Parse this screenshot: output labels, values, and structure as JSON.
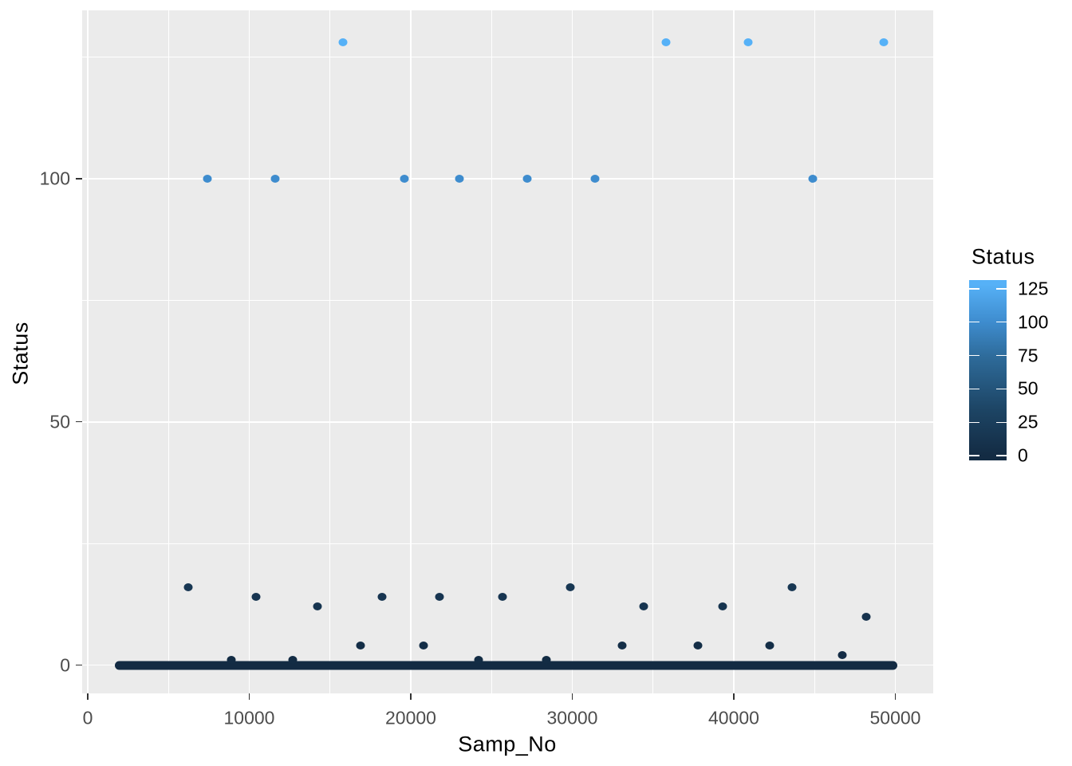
{
  "figure": {
    "background": "#FFFFFF",
    "panel_background": "#EBEBEB",
    "grid_color": "#FFFFFF",
    "tick_mark_color": "#333333",
    "tick_label_color": "#4D4D4D",
    "title_color": "#000000"
  },
  "chart_data": {
    "type": "scatter",
    "title": "",
    "xlabel": "Samp_No",
    "ylabel": "Status",
    "xlim": [
      -350,
      52400
    ],
    "ylim": [
      -6,
      134.6
    ],
    "x_major_ticks": [
      0,
      10000,
      20000,
      30000,
      40000,
      50000
    ],
    "x_minor_ticks": [
      5000,
      15000,
      25000,
      35000,
      45000
    ],
    "y_major_ticks": [
      0,
      50,
      100
    ],
    "y_minor_ticks": [
      25,
      75,
      125
    ],
    "grid": true,
    "legend": {
      "title": "Status",
      "position": "right",
      "breaks": [
        125,
        100,
        75,
        50,
        25,
        0
      ],
      "domain": [
        0,
        128
      ],
      "gradient_low": "#132B43",
      "gradient_high": "#56B1F7",
      "gradient_stops": [
        {
          "value": 0,
          "color": "#132B43"
        },
        {
          "value": 35,
          "color": "#1D4565"
        },
        {
          "value": 74,
          "color": "#2E6B9A"
        },
        {
          "value": 100,
          "color": "#3E8CCE"
        },
        {
          "value": 128,
          "color": "#56B1F7"
        }
      ]
    },
    "points": [
      {
        "samp_no": 7400,
        "status": 100
      },
      {
        "samp_no": 11600,
        "status": 100
      },
      {
        "samp_no": 19600,
        "status": 100
      },
      {
        "samp_no": 23000,
        "status": 100
      },
      {
        "samp_no": 27200,
        "status": 100
      },
      {
        "samp_no": 31400,
        "status": 100
      },
      {
        "samp_no": 44900,
        "status": 100
      },
      {
        "samp_no": 15800,
        "status": 128
      },
      {
        "samp_no": 35800,
        "status": 128
      },
      {
        "samp_no": 40900,
        "status": 128
      },
      {
        "samp_no": 49300,
        "status": 128
      },
      {
        "samp_no": 6200,
        "status": 16
      },
      {
        "samp_no": 29900,
        "status": 16
      },
      {
        "samp_no": 43600,
        "status": 16
      },
      {
        "samp_no": 10400,
        "status": 14
      },
      {
        "samp_no": 18200,
        "status": 14
      },
      {
        "samp_no": 21800,
        "status": 14
      },
      {
        "samp_no": 25700,
        "status": 14
      },
      {
        "samp_no": 14200,
        "status": 12
      },
      {
        "samp_no": 34400,
        "status": 12
      },
      {
        "samp_no": 39300,
        "status": 12
      },
      {
        "samp_no": 48200,
        "status": 10
      },
      {
        "samp_no": 16900,
        "status": 4
      },
      {
        "samp_no": 20800,
        "status": 4
      },
      {
        "samp_no": 33100,
        "status": 4
      },
      {
        "samp_no": 37800,
        "status": 4
      },
      {
        "samp_no": 42200,
        "status": 4
      },
      {
        "samp_no": 46700,
        "status": 2
      },
      {
        "samp_no": 8900,
        "status": 1
      },
      {
        "samp_no": 12700,
        "status": 1
      },
      {
        "samp_no": 24200,
        "status": 1
      },
      {
        "samp_no": 28400,
        "status": 1
      }
    ],
    "zero_run": {
      "x_start": 1700,
      "x_end": 50100,
      "status": 0,
      "note": "dense overlapping points at Status 0"
    }
  }
}
